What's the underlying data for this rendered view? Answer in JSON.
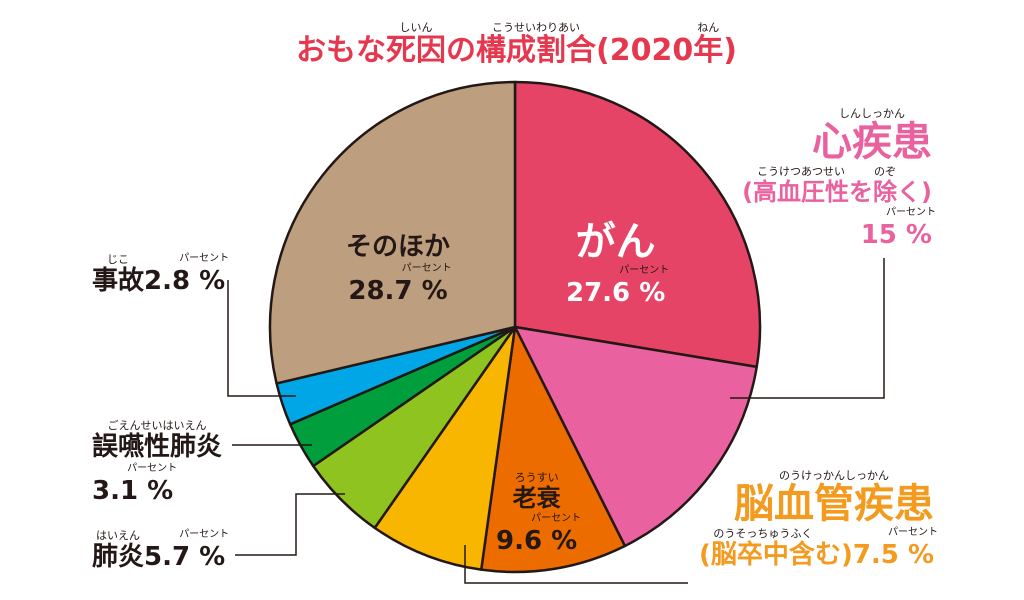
{
  "title": {
    "parts": [
      {
        "text": "おもな",
        "ruby": ""
      },
      {
        "text": "死因",
        "ruby": "しいん"
      },
      {
        "text": "の",
        "ruby": ""
      },
      {
        "text": "構成割合",
        "ruby": "こうせいわりあい"
      },
      {
        "text": "(2020",
        "ruby": ""
      },
      {
        "text": "年",
        "ruby": "ねん"
      },
      {
        "text": ")",
        "ruby": ""
      }
    ],
    "color": "#e5384f"
  },
  "chart_data": {
    "type": "pie",
    "title": "おもな死因の構成割合(2020年)",
    "start": "top",
    "direction": "clockwise",
    "slices": [
      {
        "name": "がん",
        "value": 27.6,
        "color": "#e64466"
      },
      {
        "name": "心疾患(高血圧性を除く)",
        "value": 15,
        "color": "#e9619f"
      },
      {
        "name": "老衰",
        "value": 9.6,
        "color": "#ec6c00"
      },
      {
        "name": "脳血管疾患(脳卒中含む)",
        "value": 7.5,
        "color": "#f8b600"
      },
      {
        "name": "肺炎",
        "value": 5.7,
        "color": "#8fc31f"
      },
      {
        "name": "誤嚥性肺炎",
        "value": 3.1,
        "color": "#009e3c"
      },
      {
        "name": "事故",
        "value": 2.8,
        "color": "#00a6e6"
      },
      {
        "name": "そのほか",
        "value": 28.7,
        "color": "#bd9e7e"
      }
    ]
  },
  "labels": [
    {
      "id": "cancer",
      "color": "#ffffff",
      "lines": [
        [
          {
            "text": "がん",
            "ruby": "",
            "size": 40
          }
        ],
        [
          {
            "text": "27.6 %",
            "ruby": "パーセント",
            "size": 26
          }
        ]
      ]
    },
    {
      "id": "other",
      "color": "#231815",
      "lines": [
        [
          {
            "text": "そのほか",
            "ruby": "",
            "size": 26
          }
        ],
        [
          {
            "text": "28.7 %",
            "ruby": "パーセント",
            "size": 26
          }
        ]
      ]
    },
    {
      "id": "heart",
      "color": "#e9619f",
      "lines": [
        [
          {
            "text": "心疾患",
            "ruby": "しんしっかん",
            "size": 40
          }
        ],
        [
          {
            "text": "(",
            "ruby": "",
            "size": 24
          },
          {
            "text": "高血圧性",
            "ruby": "こうけつあつせい",
            "size": 24
          },
          {
            "text": "を",
            "ruby": "",
            "size": 24
          },
          {
            "text": "除",
            "ruby": "のぞ",
            "size": 24
          },
          {
            "text": "く)",
            "ruby": "",
            "size": 24
          }
        ],
        [
          {
            "text": "15 %",
            "ruby": "パーセント",
            "size": 26
          }
        ]
      ]
    },
    {
      "id": "senility",
      "color": "#231815",
      "lines": [
        [
          {
            "text": "老衰",
            "ruby": "ろうすい",
            "size": 24
          }
        ],
        [
          {
            "text": "9.6 %",
            "ruby": "パーセント",
            "size": 26
          }
        ]
      ]
    },
    {
      "id": "cerebro",
      "color": "#f39a1f",
      "lines": [
        [
          {
            "text": "脳血管疾患",
            "ruby": "のうけっかんしっかん",
            "size": 40
          }
        ],
        [
          {
            "text": "(",
            "ruby": "",
            "size": 26
          },
          {
            "text": "脳卒中含",
            "ruby": "のうそっちゅうふく",
            "size": 26
          },
          {
            "text": "む)",
            "ruby": "",
            "size": 26
          },
          {
            "text": "7.5 %",
            "ruby": "パーセント",
            "size": 26
          }
        ]
      ]
    },
    {
      "id": "accident",
      "color": "#231815",
      "lines": [
        [
          {
            "text": "事故",
            "ruby": "じこ",
            "size": 26
          },
          {
            "text": "2.8 %",
            "ruby": "パーセント",
            "size": 26
          }
        ]
      ]
    },
    {
      "id": "aspiration",
      "color": "#231815",
      "lines": [
        [
          {
            "text": "誤嚥性肺炎",
            "ruby": "ごえんせいはいえん",
            "size": 26
          }
        ],
        [
          {
            "text": "3.1 %",
            "ruby": "パーセント",
            "size": 26
          }
        ]
      ]
    },
    {
      "id": "pneumonia",
      "color": "#231815",
      "lines": [
        [
          {
            "text": "肺炎",
            "ruby": "はいえん",
            "size": 26
          },
          {
            "text": "5.7 %",
            "ruby": "パーセント",
            "size": 26
          }
        ]
      ]
    }
  ]
}
